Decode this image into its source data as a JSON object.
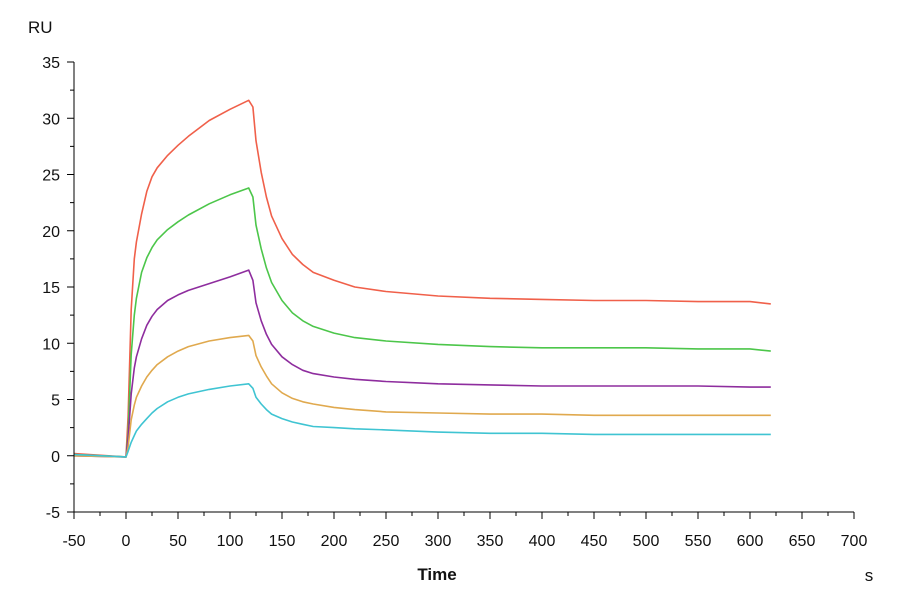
{
  "chart_data": {
    "type": "line",
    "xlabel": "Time",
    "x_unit": "s",
    "ylabel": "RU",
    "xlim": [
      -50,
      700
    ],
    "ylim": [
      -5,
      35
    ],
    "x_ticks": [
      -50,
      0,
      50,
      100,
      150,
      200,
      250,
      300,
      350,
      400,
      450,
      500,
      550,
      600,
      650,
      700
    ],
    "y_ticks": [
      -5,
      0,
      5,
      10,
      15,
      20,
      25,
      30,
      35
    ],
    "grid": false,
    "legend": "none",
    "series": [
      {
        "color": "#f0604a",
        "x": [
          -50,
          0,
          2,
          5,
          8,
          10,
          15,
          20,
          25,
          30,
          40,
          50,
          60,
          80,
          100,
          118,
          122,
          125,
          130,
          135,
          140,
          150,
          160,
          170,
          180,
          200,
          220,
          250,
          300,
          350,
          400,
          450,
          500,
          550,
          600,
          620
        ],
        "y": [
          0.2,
          -0.1,
          3.5,
          13,
          17.5,
          19,
          21.5,
          23.5,
          24.8,
          25.6,
          26.7,
          27.6,
          28.4,
          29.8,
          30.8,
          31.6,
          31.0,
          28.0,
          25.2,
          23.0,
          21.3,
          19.3,
          17.9,
          17.0,
          16.3,
          15.6,
          15.0,
          14.6,
          14.2,
          14.0,
          13.9,
          13.8,
          13.8,
          13.7,
          13.7,
          13.5
        ]
      },
      {
        "color": "#4cc64a",
        "x": [
          -50,
          0,
          2,
          5,
          8,
          10,
          15,
          20,
          25,
          30,
          40,
          50,
          60,
          80,
          100,
          118,
          122,
          125,
          130,
          135,
          140,
          150,
          160,
          170,
          180,
          200,
          220,
          250,
          300,
          350,
          400,
          450,
          500,
          550,
          600,
          620
        ],
        "y": [
          0.1,
          -0.1,
          2.0,
          9.0,
          12.5,
          14.0,
          16.3,
          17.6,
          18.5,
          19.2,
          20.1,
          20.8,
          21.4,
          22.4,
          23.2,
          23.8,
          23.0,
          20.5,
          18.4,
          16.7,
          15.4,
          13.8,
          12.7,
          12.0,
          11.5,
          10.9,
          10.5,
          10.2,
          9.9,
          9.7,
          9.6,
          9.6,
          9.6,
          9.5,
          9.5,
          9.3
        ]
      },
      {
        "color": "#8e2d9e",
        "x": [
          -50,
          0,
          2,
          5,
          8,
          10,
          15,
          20,
          25,
          30,
          40,
          50,
          60,
          80,
          100,
          118,
          122,
          125,
          130,
          135,
          140,
          150,
          160,
          170,
          180,
          200,
          220,
          250,
          300,
          350,
          400,
          450,
          500,
          550,
          600,
          620
        ],
        "y": [
          0.0,
          -0.1,
          1.5,
          5.5,
          7.8,
          8.8,
          10.4,
          11.6,
          12.4,
          13.0,
          13.8,
          14.3,
          14.7,
          15.3,
          15.9,
          16.5,
          15.6,
          13.6,
          12.0,
          10.8,
          9.9,
          8.8,
          8.1,
          7.6,
          7.3,
          7.0,
          6.8,
          6.6,
          6.4,
          6.3,
          6.2,
          6.2,
          6.2,
          6.2,
          6.1,
          6.1
        ]
      },
      {
        "color": "#e0a94e",
        "x": [
          -50,
          0,
          2,
          5,
          8,
          10,
          15,
          20,
          25,
          30,
          40,
          50,
          60,
          80,
          100,
          118,
          122,
          125,
          130,
          135,
          140,
          150,
          160,
          170,
          180,
          200,
          220,
          250,
          300,
          350,
          400,
          450,
          500,
          550,
          600,
          620
        ],
        "y": [
          0.0,
          -0.1,
          0.8,
          3.2,
          4.5,
          5.2,
          6.2,
          7.0,
          7.6,
          8.1,
          8.8,
          9.3,
          9.7,
          10.2,
          10.5,
          10.7,
          10.2,
          8.9,
          7.9,
          7.1,
          6.4,
          5.6,
          5.1,
          4.8,
          4.6,
          4.3,
          4.1,
          3.9,
          3.8,
          3.7,
          3.7,
          3.6,
          3.6,
          3.6,
          3.6,
          3.6
        ]
      },
      {
        "color": "#3fc4d2",
        "x": [
          -50,
          0,
          2,
          5,
          8,
          10,
          15,
          20,
          25,
          30,
          40,
          50,
          60,
          80,
          100,
          118,
          122,
          125,
          130,
          135,
          140,
          150,
          160,
          170,
          180,
          200,
          220,
          250,
          300,
          350,
          400,
          450,
          500,
          550,
          600,
          620
        ],
        "y": [
          0.1,
          -0.1,
          0.4,
          1.2,
          1.8,
          2.2,
          2.8,
          3.3,
          3.8,
          4.2,
          4.8,
          5.2,
          5.5,
          5.9,
          6.2,
          6.4,
          6.0,
          5.2,
          4.6,
          4.1,
          3.7,
          3.3,
          3.0,
          2.8,
          2.6,
          2.5,
          2.4,
          2.3,
          2.1,
          2.0,
          2.0,
          1.9,
          1.9,
          1.9,
          1.9,
          1.9
        ]
      }
    ]
  }
}
